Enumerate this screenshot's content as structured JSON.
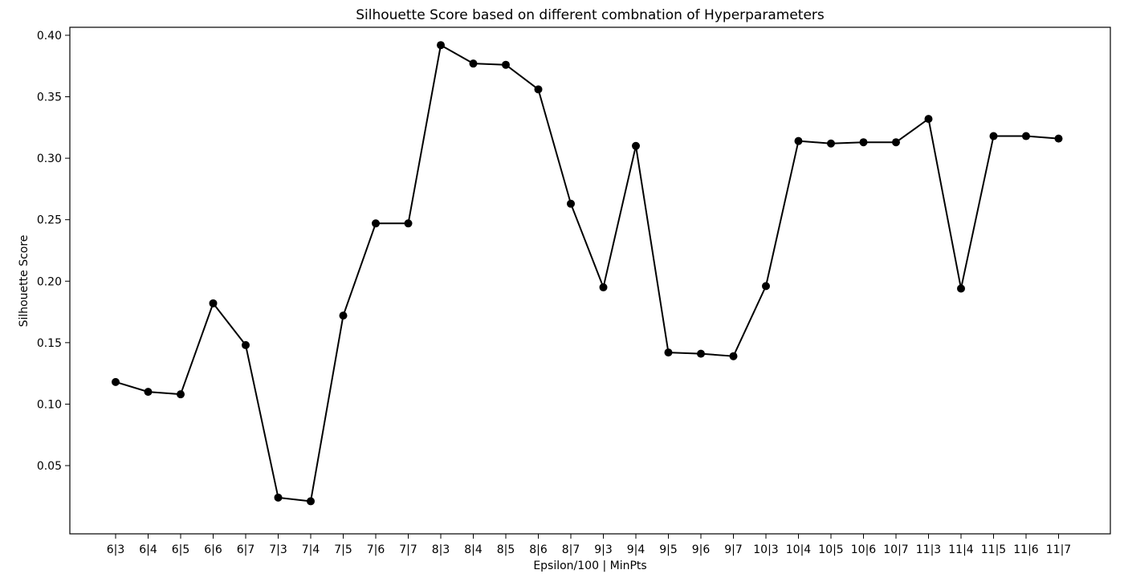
{
  "chart_data": {
    "type": "line",
    "title": "Silhouette Score based on different combnation of Hyperparameters",
    "xlabel": "Epsilon/100 | MinPts",
    "ylabel": "Silhouette Score",
    "categories": [
      "6|3",
      "6|4",
      "6|5",
      "6|6",
      "6|7",
      "7|3",
      "7|4",
      "7|5",
      "7|6",
      "7|7",
      "8|3",
      "8|4",
      "8|5",
      "8|6",
      "8|7",
      "9|3",
      "9|4",
      "9|5",
      "9|6",
      "9|7",
      "10|3",
      "10|4",
      "10|5",
      "10|6",
      "10|7",
      "11|3",
      "11|4",
      "11|5",
      "11|6",
      "11|7"
    ],
    "series": [
      {
        "values": [
          0.118,
          0.11,
          0.108,
          0.182,
          0.148,
          0.024,
          0.021,
          0.172,
          0.247,
          0.247,
          0.392,
          0.377,
          0.376,
          0.356,
          0.263,
          0.195,
          0.31,
          0.142,
          0.141,
          0.139,
          0.196,
          0.314,
          0.312,
          0.313,
          0.313,
          0.332,
          0.194,
          0.318,
          0.318,
          0.316
        ],
        "color": "#000000",
        "marker": "circle"
      }
    ],
    "yticks": [
      "0.05",
      "0.10",
      "0.15",
      "0.20",
      "0.25",
      "0.30",
      "0.35",
      "0.40"
    ],
    "ylim": [
      -0.0055,
      0.4065
    ],
    "grid": false,
    "legend": "none"
  }
}
